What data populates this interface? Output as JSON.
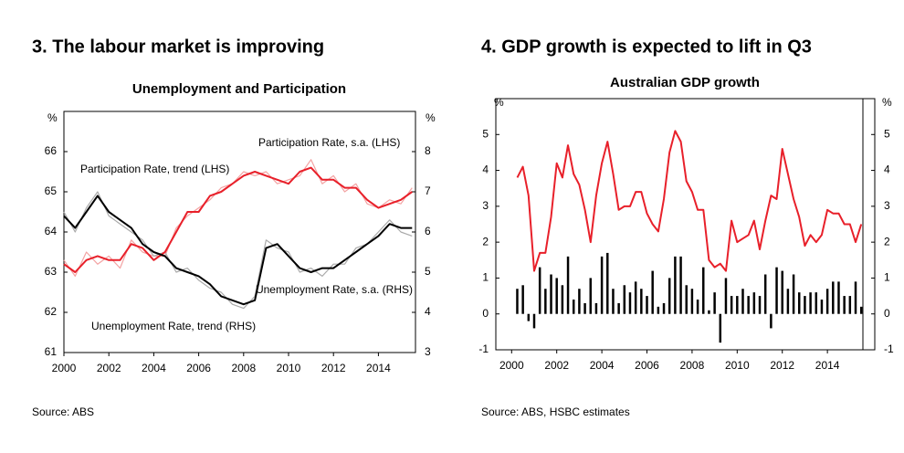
{
  "chart_data": [
    {
      "type": "line",
      "title": "3. The labour market is improving",
      "subtitle": "Unemployment and Participation",
      "source": "Source: ABS",
      "y_label": "%",
      "y2_label": "%",
      "xlim": [
        2000,
        2015.65
      ],
      "xticks": [
        2000,
        2002,
        2004,
        2006,
        2008,
        2010,
        2012,
        2014
      ],
      "ylim": [
        61,
        67
      ],
      "yticks": [
        61,
        62,
        63,
        64,
        65,
        66
      ],
      "y2lim": [
        3,
        9
      ],
      "y2ticks": [
        3,
        4,
        5,
        6,
        7,
        8
      ],
      "x": [
        2000,
        2000.5,
        2001,
        2001.5,
        2002,
        2002.5,
        2003,
        2003.5,
        2004,
        2004.5,
        2005,
        2005.5,
        2006,
        2006.5,
        2007,
        2007.5,
        2008,
        2008.5,
        2009,
        2009.5,
        2010,
        2010.5,
        2011,
        2011.5,
        2012,
        2012.5,
        2013,
        2013.5,
        2014,
        2014.5,
        2015,
        2015.5
      ],
      "series": [
        {
          "name": "Participation Rate, s.a. (LHS)",
          "color": "#f3a3a3",
          "type": "line",
          "values": [
            63.3,
            62.9,
            63.5,
            63.2,
            63.4,
            63.1,
            63.8,
            63.5,
            63.4,
            63.4,
            64.1,
            64.4,
            64.6,
            64.8,
            65.1,
            65.2,
            65.5,
            65.4,
            65.5,
            65.2,
            65.3,
            65.4,
            65.8,
            65.2,
            65.4,
            65.0,
            65.2,
            64.7,
            64.6,
            64.8,
            64.7,
            65.1
          ]
        },
        {
          "name": "Unemployment Rate, s.a. (RHS)",
          "color": "#aaaaaa",
          "type": "line",
          "axis": "y2",
          "values": [
            6.5,
            6.0,
            6.6,
            7.0,
            6.4,
            6.2,
            6.0,
            5.8,
            5.4,
            5.5,
            5.0,
            5.1,
            4.8,
            4.6,
            4.5,
            4.2,
            4.1,
            4.4,
            5.8,
            5.6,
            5.5,
            5.0,
            5.1,
            4.9,
            5.2,
            5.2,
            5.6,
            5.7,
            6.0,
            6.3,
            6.0,
            5.9
          ]
        },
        {
          "name": "Participation Rate, trend (LHS)",
          "color": "#e8202a",
          "type": "line",
          "values": [
            63.2,
            63.0,
            63.3,
            63.4,
            63.3,
            63.3,
            63.7,
            63.6,
            63.3,
            63.5,
            64.0,
            64.5,
            64.5,
            64.9,
            65.0,
            65.2,
            65.4,
            65.5,
            65.4,
            65.3,
            65.2,
            65.5,
            65.6,
            65.3,
            65.3,
            65.1,
            65.1,
            64.8,
            64.6,
            64.7,
            64.8,
            65.0
          ]
        },
        {
          "name": "Unemployment Rate, trend (RHS)",
          "color": "#000000",
          "type": "line",
          "axis": "y2",
          "values": [
            6.4,
            6.1,
            6.5,
            6.9,
            6.5,
            6.3,
            6.1,
            5.7,
            5.5,
            5.4,
            5.1,
            5.0,
            4.9,
            4.7,
            4.4,
            4.3,
            4.2,
            4.3,
            5.6,
            5.7,
            5.4,
            5.1,
            5.0,
            5.1,
            5.1,
            5.3,
            5.5,
            5.7,
            5.9,
            6.2,
            6.1,
            6.1
          ]
        }
      ]
    },
    {
      "type": "combo",
      "title": "4. GDP growth is expected to lift in Q3",
      "subtitle": "Australian GDP growth",
      "source": "Source: ABS, HSBC estimates",
      "y_label": "%",
      "y2_label": "%",
      "xlim": [
        1999.3,
        2016.1
      ],
      "xticks": [
        2000,
        2002,
        2004,
        2006,
        2008,
        2010,
        2012,
        2014
      ],
      "ylim": [
        -1,
        6
      ],
      "yticks": [
        -1,
        0,
        1,
        2,
        3,
        4,
        5
      ],
      "y2lim": [
        -1,
        6
      ],
      "y2ticks": [
        -1,
        0,
        1,
        2,
        3,
        4,
        5
      ],
      "x": [
        2000.25,
        2000.5,
        2000.75,
        2001,
        2001.25,
        2001.5,
        2001.75,
        2002,
        2002.25,
        2002.5,
        2002.75,
        2003,
        2003.25,
        2003.5,
        2003.75,
        2004,
        2004.25,
        2004.5,
        2004.75,
        2005,
        2005.25,
        2005.5,
        2005.75,
        2006,
        2006.25,
        2006.5,
        2006.75,
        2007,
        2007.25,
        2007.5,
        2007.75,
        2008,
        2008.25,
        2008.5,
        2008.75,
        2009,
        2009.25,
        2009.5,
        2009.75,
        2010,
        2010.25,
        2010.5,
        2010.75,
        2011,
        2011.25,
        2011.5,
        2011.75,
        2012,
        2012.25,
        2012.5,
        2012.75,
        2013,
        2013.25,
        2013.5,
        2013.75,
        2014,
        2014.25,
        2014.5,
        2014.75,
        2015,
        2015.25,
        2015.5
      ],
      "series": [
        {
          "color": "#000000",
          "type": "bar",
          "values": [
            0.7,
            0.8,
            -0.2,
            -0.4,
            1.3,
            0.7,
            1.1,
            1.0,
            0.8,
            1.6,
            0.4,
            0.7,
            0.3,
            1.0,
            0.3,
            1.6,
            1.7,
            0.7,
            0.3,
            0.8,
            0.6,
            0.9,
            0.7,
            0.5,
            1.2,
            0.2,
            0.3,
            1.0,
            1.6,
            1.6,
            0.8,
            0.7,
            0.4,
            1.3,
            0.1,
            0.6,
            -0.8,
            1.0,
            0.5,
            0.5,
            0.7,
            0.5,
            0.6,
            0.5,
            1.1,
            -0.4,
            1.3,
            1.2,
            0.7,
            1.1,
            0.6,
            0.5,
            0.6,
            0.6,
            0.4,
            0.7,
            0.9,
            0.9,
            0.5,
            0.5,
            0.9,
            0.2
          ]
        },
        {
          "color": "#e8202a",
          "type": "line",
          "values": [
            3.8,
            4.1,
            3.3,
            1.2,
            1.7,
            1.7,
            2.7,
            4.2,
            3.8,
            4.7,
            3.9,
            3.6,
            2.9,
            2.0,
            3.3,
            4.2,
            4.8,
            3.9,
            2.9,
            3.0,
            3.0,
            3.4,
            3.4,
            2.8,
            2.5,
            2.3,
            3.2,
            4.5,
            5.1,
            4.8,
            3.7,
            3.4,
            2.9,
            2.9,
            1.5,
            1.3,
            1.4,
            1.2,
            2.6,
            2.0,
            2.1,
            2.2,
            2.6,
            1.8,
            2.6,
            3.3,
            3.2,
            4.6,
            3.9,
            3.2,
            2.7,
            1.9,
            2.2,
            2.0,
            2.2,
            2.9,
            2.8,
            2.8,
            2.5,
            2.5,
            2.0,
            2.5
          ]
        }
      ]
    }
  ]
}
